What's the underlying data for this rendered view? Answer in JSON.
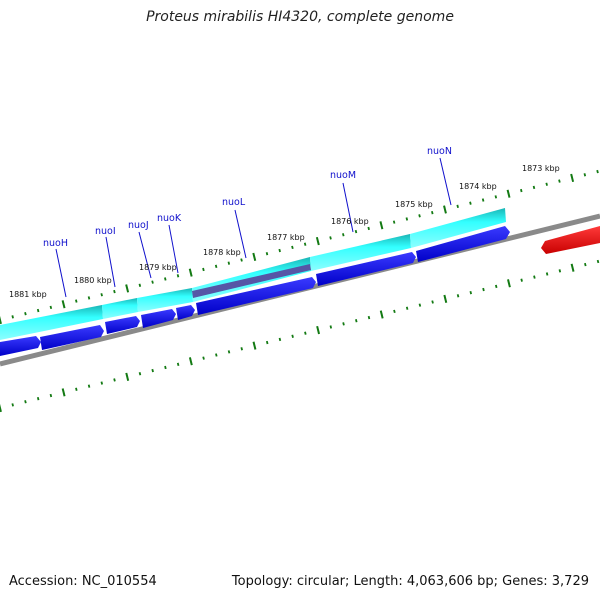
{
  "title": "Proteus mirabilis HI4320, complete genome",
  "footer": {
    "accession": "Accession: NC_010554",
    "summary": "Topology: circular; Length: 4,063,606 bp; Genes: 3,729"
  },
  "scale_labels": [
    "1881 kbp",
    "1880 kbp",
    "1879 kbp",
    "1878 kbp",
    "1877 kbp",
    "1876 kbp",
    "1875 kbp",
    "1874 kbp",
    "1873 kbp"
  ],
  "gene_labels": [
    "nuoH",
    "nuoI",
    "nuoJ",
    "nuoK",
    "nuoL",
    "nuoM",
    "nuoN"
  ],
  "colors": {
    "cds": "#0a0ae6",
    "gene_band": "#33ffff",
    "gene_band_edge": "#12a5a5",
    "backbone": "#888888",
    "tick": "#137a13",
    "hit": "#e60000",
    "hit_dark": "#6060a8",
    "gene_label": "#1010cc"
  }
}
